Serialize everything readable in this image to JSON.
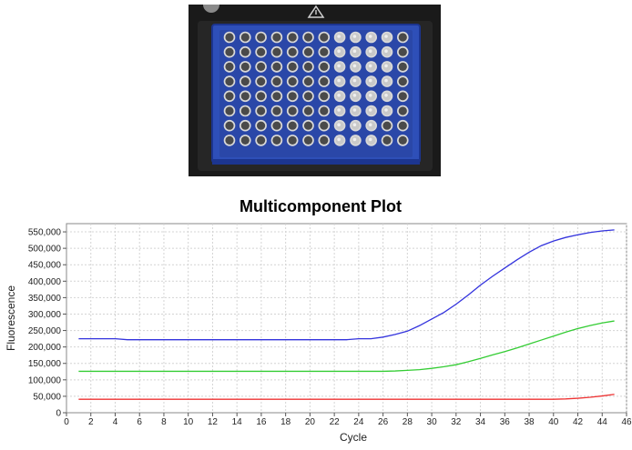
{
  "photo": {
    "description_icon": "caution-triangle-icon",
    "plate_color": "#2e4fb8",
    "frame_color": "#1d1d1d"
  },
  "chart_data": {
    "type": "line",
    "title": "Multicomponent Plot",
    "xlabel": "Cycle",
    "ylabel": "Fluorescence",
    "xlim": [
      0,
      46
    ],
    "ylim": [
      0,
      575000
    ],
    "xticks": [
      "0",
      "2",
      "4",
      "6",
      "8",
      "10",
      "12",
      "14",
      "16",
      "18",
      "20",
      "22",
      "24",
      "26",
      "28",
      "30",
      "32",
      "34",
      "36",
      "38",
      "40",
      "42",
      "44",
      "46"
    ],
    "yticks": [
      "0",
      "50,000",
      "100,000",
      "150,000",
      "200,000",
      "250,000",
      "300,000",
      "350,000",
      "400,000",
      "450,000",
      "500,000",
      "550,000"
    ],
    "grid": true,
    "x": [
      1,
      2,
      3,
      4,
      5,
      6,
      7,
      8,
      9,
      10,
      11,
      12,
      13,
      14,
      15,
      16,
      17,
      18,
      19,
      20,
      21,
      22,
      23,
      24,
      25,
      26,
      27,
      28,
      29,
      30,
      31,
      32,
      33,
      34,
      35,
      36,
      37,
      38,
      39,
      40,
      41,
      42,
      43,
      44,
      45
    ],
    "series": [
      {
        "color": "#3333dd",
        "values": [
          225000,
          225000,
          225000,
          225000,
          222000,
          222000,
          222000,
          222000,
          222000,
          222000,
          222000,
          222000,
          222000,
          222000,
          222000,
          222000,
          222000,
          222000,
          222000,
          222000,
          222000,
          222000,
          222000,
          225000,
          225000,
          230000,
          238000,
          248000,
          265000,
          285000,
          305000,
          330000,
          358000,
          388000,
          415000,
          440000,
          465000,
          488000,
          508000,
          522000,
          533000,
          541000,
          548000,
          553000,
          556000
        ]
      },
      {
        "color": "#33cc33",
        "values": [
          126000,
          126000,
          126000,
          126000,
          126000,
          126000,
          126000,
          126000,
          126000,
          126000,
          126000,
          126000,
          126000,
          126000,
          126000,
          126000,
          126000,
          126000,
          126000,
          126000,
          126000,
          126000,
          126000,
          126000,
          126000,
          126000,
          127000,
          129000,
          131000,
          135000,
          140000,
          146000,
          155000,
          165000,
          176000,
          186000,
          197000,
          209000,
          221000,
          233000,
          245000,
          256000,
          265000,
          273000,
          279000
        ]
      },
      {
        "color": "#ee3333",
        "values": [
          41000,
          41000,
          41000,
          41000,
          41000,
          41000,
          41000,
          41000,
          41000,
          41000,
          41000,
          41000,
          41000,
          41000,
          41000,
          41000,
          41000,
          41000,
          41000,
          41000,
          41000,
          41000,
          41000,
          41000,
          41000,
          41000,
          41000,
          41000,
          41000,
          41000,
          41000,
          41000,
          41000,
          41000,
          41000,
          41000,
          41000,
          41000,
          41000,
          41000,
          42000,
          44000,
          47000,
          51000,
          56000
        ]
      }
    ]
  }
}
